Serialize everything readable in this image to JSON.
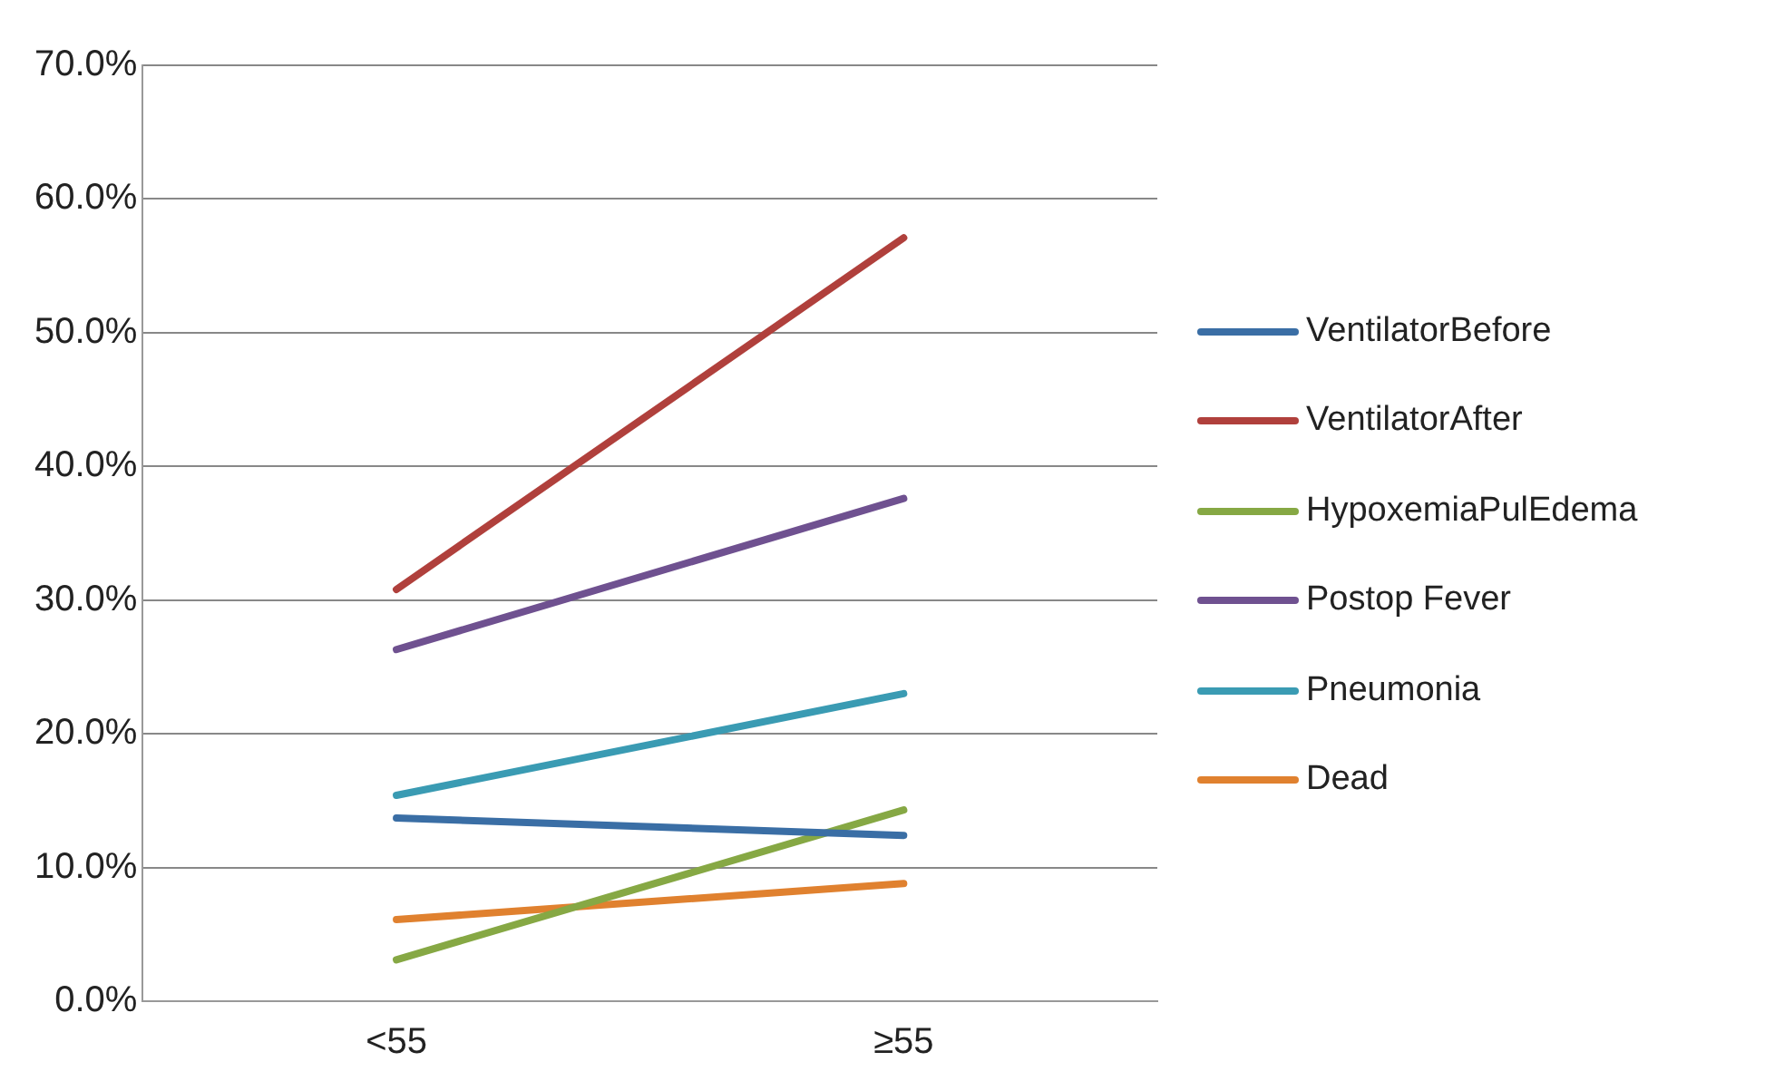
{
  "chart_data": {
    "type": "line",
    "categories": [
      "<55",
      "≥55"
    ],
    "series": [
      {
        "name": "VentilatorBefore",
        "color": "#3a6ea5",
        "values": [
          13.7,
          12.4
        ]
      },
      {
        "name": "VentilatorAfter",
        "color": "#b0403c",
        "values": [
          30.8,
          57.1
        ]
      },
      {
        "name": "HypoxemiaPulEdema",
        "color": "#86a844",
        "values": [
          3.1,
          14.3
        ]
      },
      {
        "name": "Postop Fever",
        "color": "#6f5190",
        "values": [
          26.3,
          37.6
        ]
      },
      {
        "name": "Pneumonia",
        "color": "#3a9bb3",
        "values": [
          15.4,
          23.0
        ]
      },
      {
        "name": "Dead",
        "color": "#e0812f",
        "values": [
          6.1,
          8.8
        ]
      }
    ],
    "ylim": [
      0,
      70
    ],
    "yticks": [
      {
        "value": 0,
        "label": "0.0%"
      },
      {
        "value": 10,
        "label": "10.0%"
      },
      {
        "value": 20,
        "label": "20.0%"
      },
      {
        "value": 30,
        "label": "30.0%"
      },
      {
        "value": 40,
        "label": "40.0%"
      },
      {
        "value": 50,
        "label": "50.0%"
      },
      {
        "value": 60,
        "label": "60.0%"
      },
      {
        "value": 70,
        "label": "70.0%"
      }
    ],
    "grid": "y",
    "legend": "right",
    "marker": "none",
    "line_style": "solid"
  }
}
